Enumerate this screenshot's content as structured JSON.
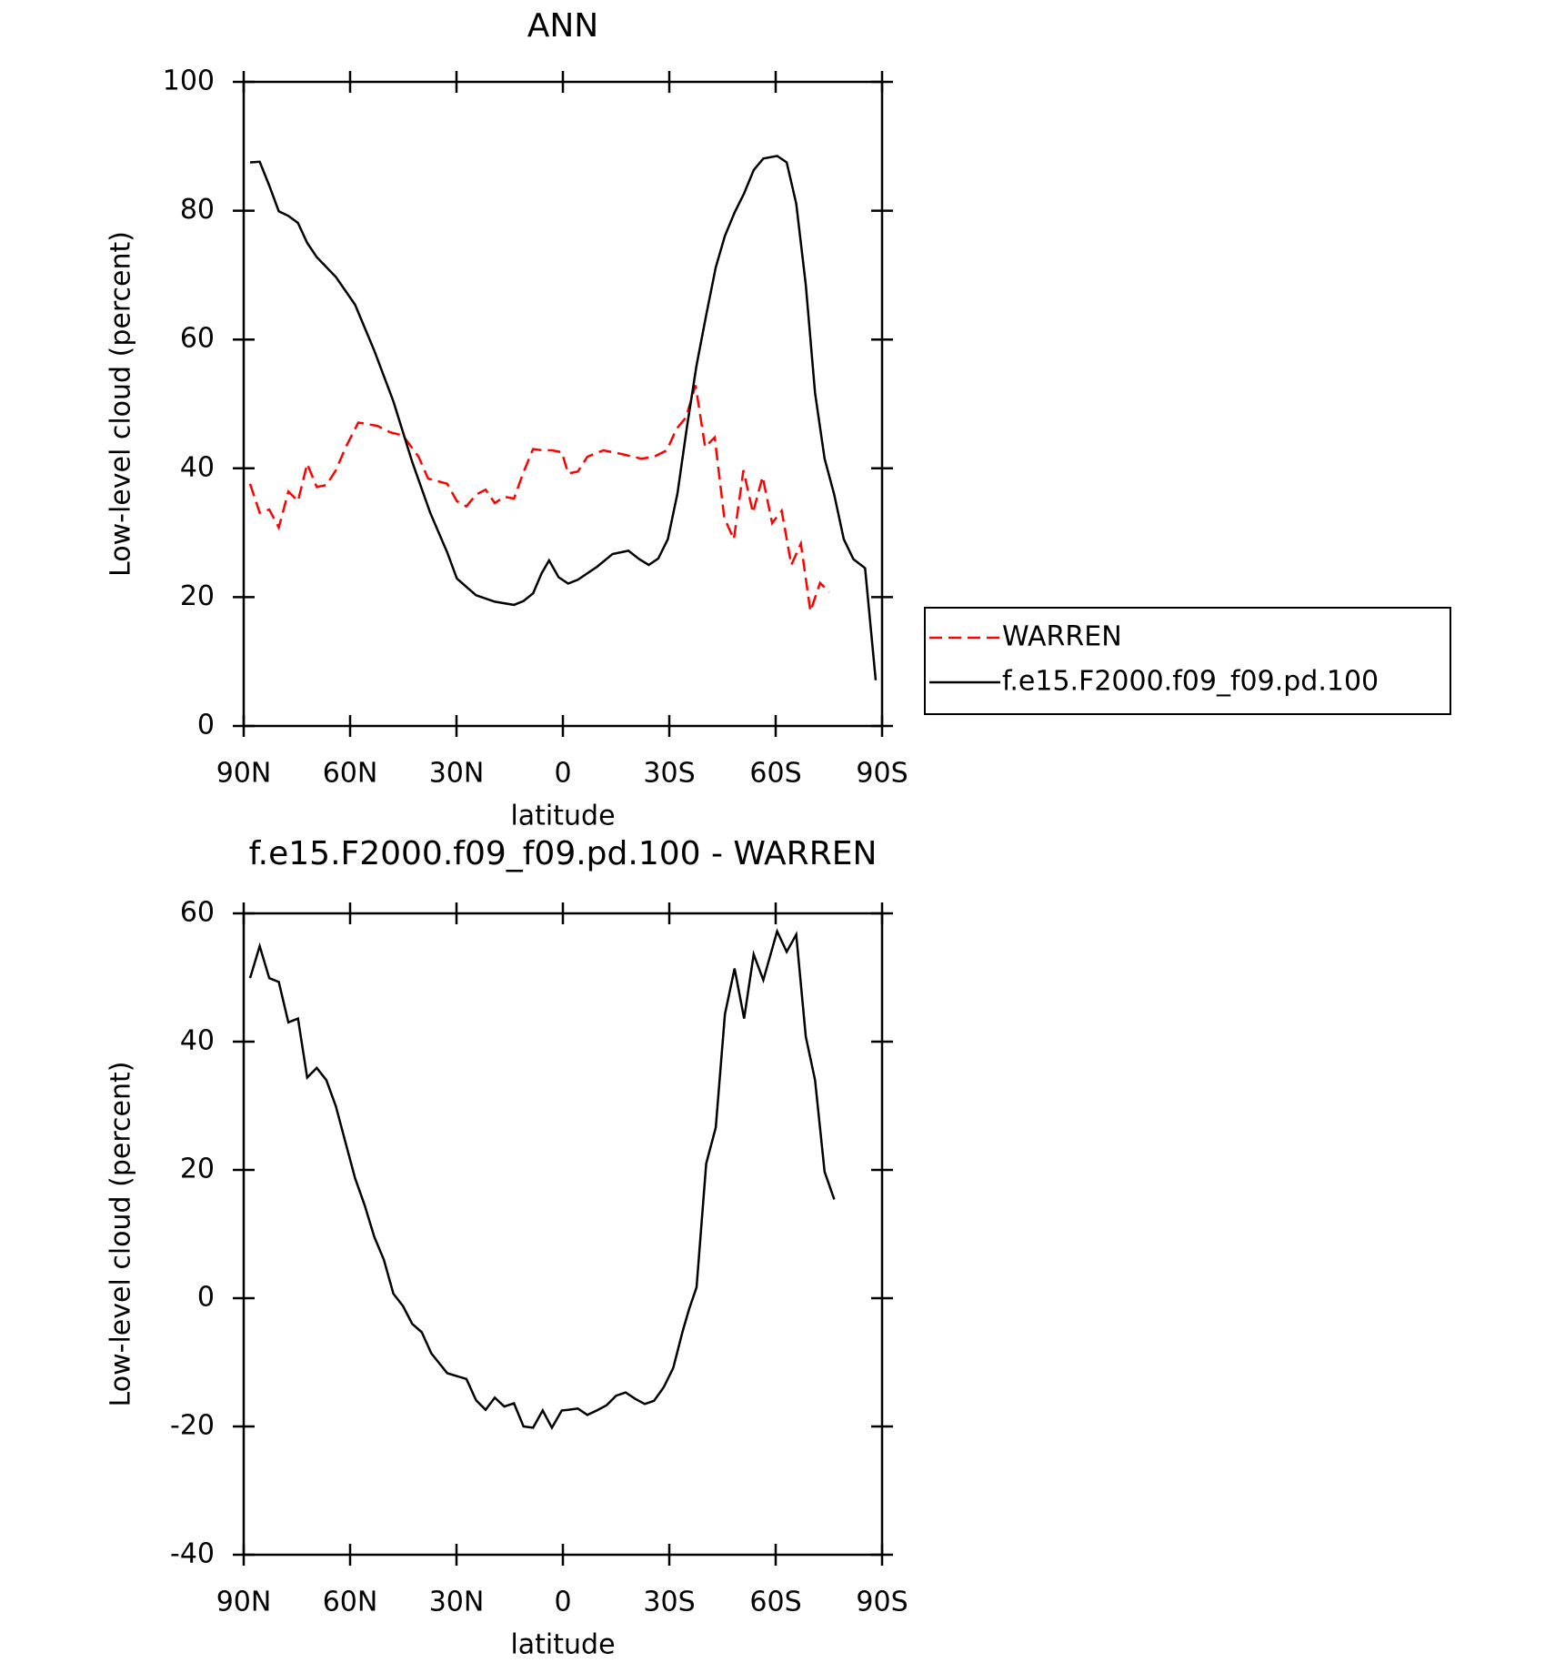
{
  "chart_data": [
    {
      "type": "line",
      "title": "ANN",
      "xlabel": "latitude",
      "ylabel": "Low-level cloud (percent)",
      "xlim": [
        90,
        -90
      ],
      "ylim": [
        0,
        100
      ],
      "xticks": [
        {
          "value": 90,
          "label": "90N"
        },
        {
          "value": 60,
          "label": "60N"
        },
        {
          "value": 30,
          "label": "30N"
        },
        0,
        {
          "value": -30,
          "label": "30S"
        },
        {
          "value": -60,
          "label": "60S"
        },
        {
          "value": -90,
          "label": "90S"
        }
      ],
      "yticks": [
        0,
        20,
        40,
        60,
        80,
        100
      ],
      "legend": "outside-right",
      "series": [
        {
          "name": "WARREN",
          "color": "#ff0000",
          "dashed": true,
          "x": [
            88.2,
            85.5,
            82.8,
            80.1,
            77.4,
            74.7,
            72.1,
            69.4,
            66.7,
            64,
            61.3,
            57.7,
            52.3,
            48.7,
            45.1,
            40.7,
            38,
            32.6,
            29.9,
            27.2,
            24.5,
            21.8,
            19.2,
            16.5,
            13.8,
            11.1,
            8.4,
            5.7,
            3.1,
            0.3,
            -1.5,
            -4.2,
            -6.9,
            -11.4,
            -16.7,
            -22.1,
            -25.7,
            -29.3,
            -32,
            -34.7,
            -37.4,
            -40.1,
            -42.8,
            -45.5,
            -48.2,
            -50.9,
            -53.6,
            -56.3,
            -59,
            -61.7,
            -64.4,
            -67.1,
            -69.8,
            -72.5,
            -75.1
          ],
          "values": [
            37.6,
            33.1,
            33.6,
            30.8,
            36.4,
            34.9,
            40.7,
            37.1,
            37.4,
            39.7,
            43.2,
            47.1,
            46.6,
            45.6,
            45.1,
            41.8,
            38.4,
            37.6,
            34.9,
            34.1,
            35.9,
            36.7,
            34.6,
            35.6,
            35.3,
            39.4,
            43,
            42.8,
            42.8,
            42.5,
            39.2,
            39.5,
            41.8,
            42.8,
            42.2,
            41.5,
            41.8,
            42.8,
            46.1,
            47.9,
            52.9,
            43.3,
            44.8,
            32.3,
            29,
            39.7,
            33.1,
            38.7,
            31.5,
            33.4,
            25,
            28.3,
            17.8,
            22.2,
            20.8
          ]
        },
        {
          "name": "f.e15.F2000.f09_f09.pd.100",
          "color": "#000000",
          "dashed": false,
          "x": [
            88.2,
            85.5,
            82.8,
            80.1,
            77.4,
            74.7,
            72.1,
            69.4,
            64,
            58.6,
            53.2,
            47.8,
            42.5,
            37.4,
            32.6,
            29.9,
            24.5,
            19.2,
            13.8,
            11.1,
            8.4,
            6,
            3.9,
            1.2,
            -1.5,
            -4.2,
            -9.6,
            -14,
            -18.5,
            -21.5,
            -24.2,
            -26.9,
            -29.6,
            -32.3,
            -35,
            -37.7,
            -40.4,
            -43.1,
            -45.7,
            -48.4,
            -51.1,
            -53.8,
            -56.5,
            -60.4,
            -63.1,
            -65.8,
            -68.5,
            -71.1,
            -73.8,
            -76.5,
            -79.2,
            -81.9,
            -85.2,
            -88.2
          ],
          "values": [
            87.5,
            87.6,
            83.9,
            79.9,
            79.2,
            78.1,
            75,
            72.8,
            69.7,
            65.4,
            58.3,
            50.4,
            41,
            33.1,
            26.9,
            22.9,
            20.3,
            19.3,
            18.8,
            19.4,
            20.6,
            23.7,
            25.7,
            23.1,
            22.1,
            22.7,
            24.7,
            26.7,
            27.2,
            25.9,
            25,
            26,
            29,
            36.1,
            46.5,
            56,
            63.8,
            71.2,
            76.1,
            79.7,
            82.7,
            86.3,
            88.1,
            88.5,
            87.5,
            81.1,
            68.5,
            51.7,
            41.5,
            35.9,
            29,
            25.9,
            24.5,
            7.1
          ]
        }
      ]
    },
    {
      "type": "line",
      "title": "f.e15.F2000.f09_f09.pd.100 - WARREN",
      "xlabel": "latitude",
      "ylabel": "Low-level cloud (percent)",
      "xlim": [
        90,
        -90
      ],
      "ylim": [
        -40,
        60
      ],
      "xticks": [
        {
          "value": 90,
          "label": "90N"
        },
        {
          "value": 60,
          "label": "60N"
        },
        {
          "value": 30,
          "label": "30N"
        },
        0,
        {
          "value": -30,
          "label": "30S"
        },
        {
          "value": -60,
          "label": "60S"
        },
        {
          "value": -90,
          "label": "90S"
        }
      ],
      "yticks": [
        -40,
        -20,
        0,
        20,
        40,
        60
      ],
      "series": [
        {
          "color": "#000000",
          "dashed": false,
          "x": [
            88.2,
            85.5,
            82.8,
            80.1,
            77.4,
            74.7,
            72.1,
            69.4,
            66.7,
            64,
            61.3,
            58.6,
            55.9,
            53.2,
            50.5,
            47.8,
            45.1,
            42.5,
            39.8,
            37.1,
            32.6,
            27.2,
            24.5,
            21.8,
            19.2,
            16.5,
            13.8,
            11.1,
            8.4,
            5.7,
            3.1,
            0.3,
            -1.5,
            -4.2,
            -6.9,
            -9.6,
            -12.3,
            -15,
            -17.7,
            -20.4,
            -23.1,
            -25.7,
            -28.4,
            -31.1,
            -33.8,
            -35.6,
            -37.7,
            -40.4,
            -43.1,
            -45.7,
            -48.4,
            -51.1,
            -53.8,
            -56.5,
            -60.4,
            -63.1,
            -65.8,
            -68.5,
            -71.1,
            -73.8,
            -76.5
          ],
          "values": [
            49.9,
            54.9,
            49.9,
            49.3,
            43,
            43.6,
            34.4,
            35.9,
            34,
            29.9,
            24.3,
            18.7,
            14.5,
            9.6,
            6,
            0.7,
            -1.2,
            -4,
            -5.3,
            -8.6,
            -11.7,
            -12.6,
            -15.9,
            -17.4,
            -15.5,
            -16.9,
            -16.4,
            -20,
            -20.2,
            -17.5,
            -20.2,
            -17.5,
            -17.4,
            -17.2,
            -18.2,
            -17.5,
            -16.7,
            -15.2,
            -14.7,
            -15.7,
            -16.5,
            -16,
            -13.9,
            -10.9,
            -5.1,
            -1.7,
            1.7,
            21,
            26.6,
            44.3,
            51.4,
            43.6,
            53.6,
            49.6,
            57.2,
            54,
            56.7,
            40.8,
            34,
            19.7,
            15.4
          ]
        }
      ]
    }
  ]
}
